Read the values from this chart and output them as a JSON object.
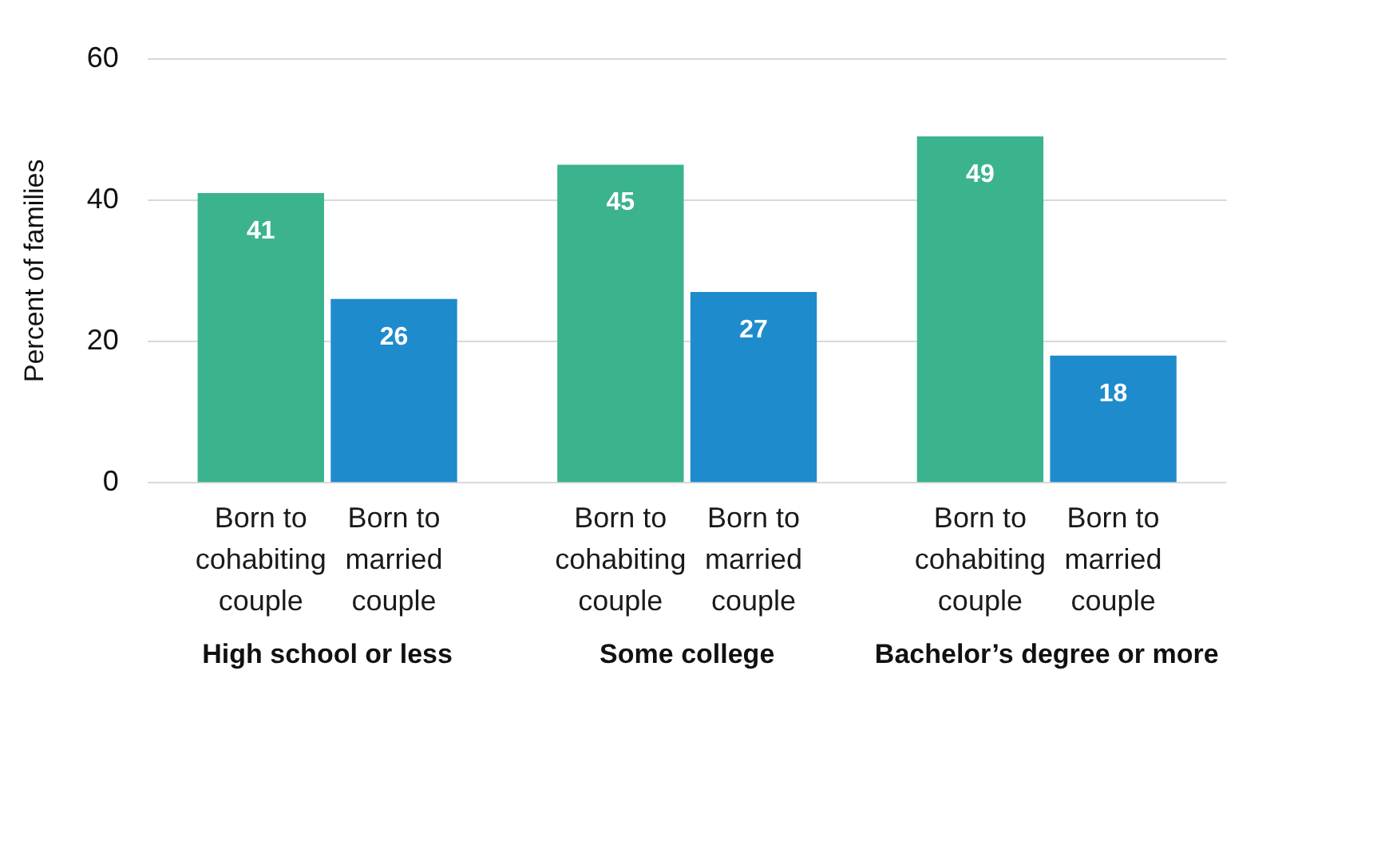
{
  "chart_data": {
    "type": "bar",
    "ylabel": "Percent of families",
    "categories": [
      "High school or less",
      "Some college",
      "Bachelor’s degree or more"
    ],
    "series": [
      {
        "name": "Born to cohabiting couple",
        "color": "#3bb38f",
        "values": [
          41,
          45,
          49
        ]
      },
      {
        "name": "Born to married couple",
        "color": "#1e8bcc",
        "values": [
          26,
          27,
          18
        ]
      }
    ],
    "ylim": [
      0,
      60
    ],
    "yticks": [
      0,
      20,
      40,
      60
    ],
    "grid": "y",
    "data_labels": true
  }
}
